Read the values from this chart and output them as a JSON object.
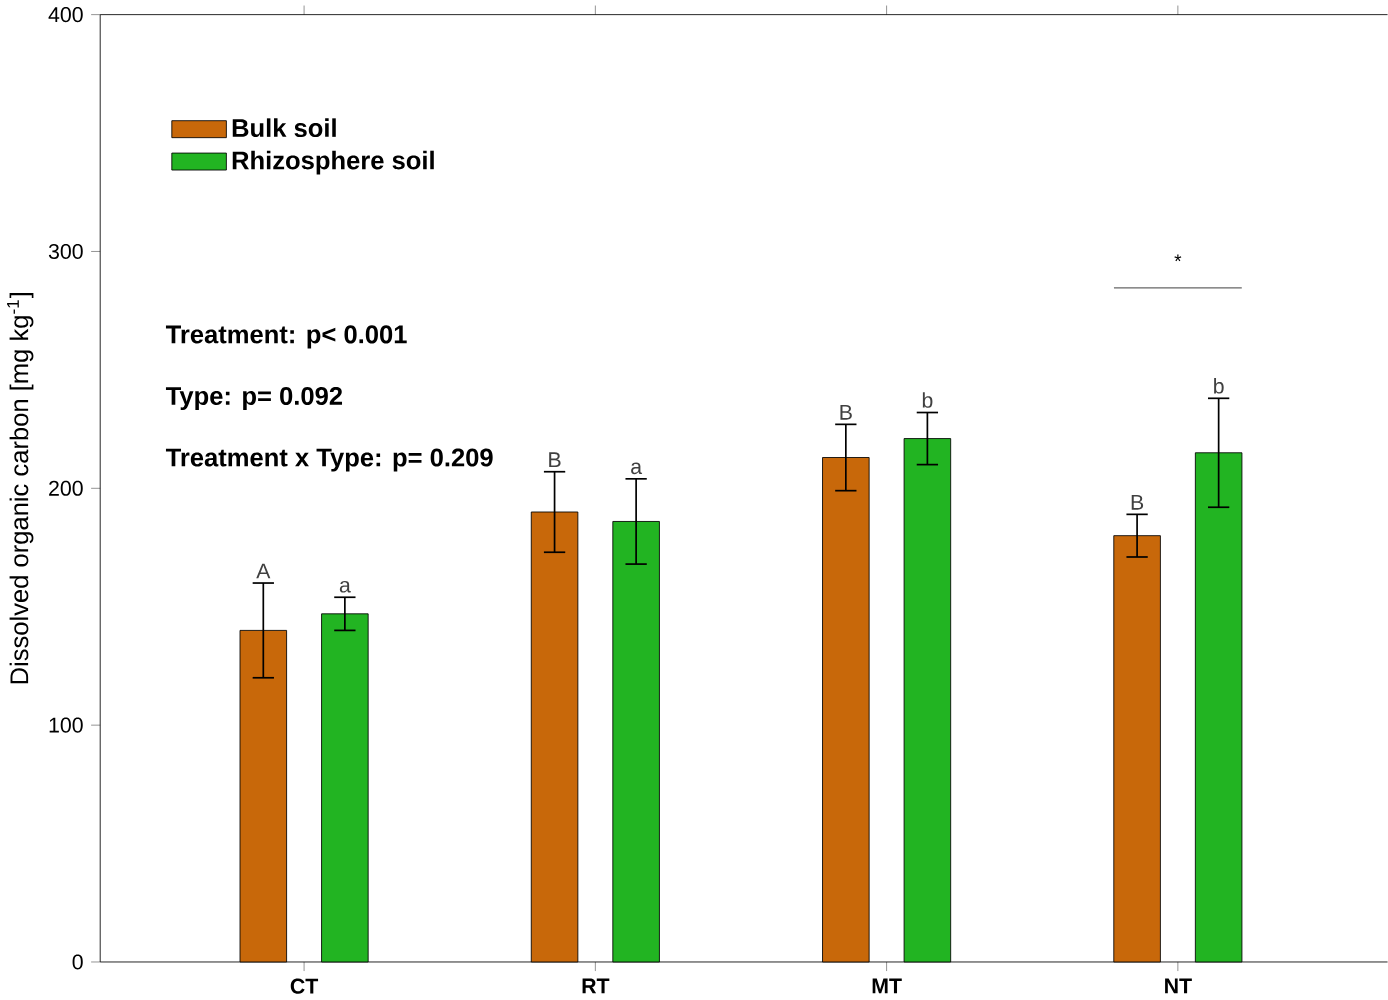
{
  "chart_data": {
    "type": "bar",
    "ylabel": "Dissolved organic carbon [mg kg$^{-1}$]",
    "categories": [
      "CT",
      "RT",
      "MT",
      "NT"
    ],
    "series": [
      {
        "name": "Bulk soil",
        "color": "#c8680a",
        "values": [
          140,
          190,
          213,
          180
        ],
        "errors": [
          20,
          17,
          14,
          9
        ],
        "value_labels": [
          "A",
          "B",
          "B",
          "B"
        ]
      },
      {
        "name": "Rhizosphere soil",
        "color": "#22b422",
        "values": [
          147,
          186,
          221,
          215
        ],
        "errors": [
          7,
          18,
          11,
          23
        ],
        "value_labels": [
          "a",
          "a",
          "b",
          "b"
        ]
      }
    ],
    "ylim": [
      0,
      400
    ],
    "yticks": [
      0,
      100,
      200,
      300,
      400
    ],
    "grid": false,
    "legend": "top left",
    "annotations": [
      "Treatment: p< 0.001",
      "Type: p= 0.092",
      "Treatment x Type: p= 0.209",
      "*"
    ]
  }
}
